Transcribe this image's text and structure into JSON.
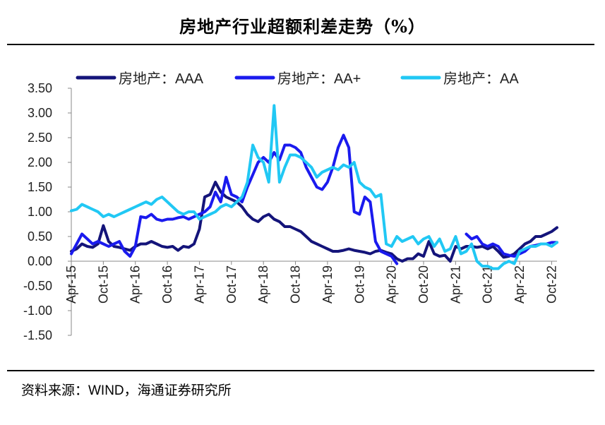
{
  "chart_data": {
    "type": "line",
    "title": "房地产行业超额利差走势（%）",
    "source": "资料来源：WIND，海通证券研究所",
    "xlabel": "",
    "ylabel": "",
    "ylim": [
      -1.5,
      3.5
    ],
    "y_ticks": [
      3.5,
      3.0,
      2.5,
      2.0,
      1.5,
      1.0,
      0.5,
      0.0,
      -0.5,
      -1.0,
      -1.5
    ],
    "y_tick_labels": [
      "3.50",
      "3.00",
      "2.50",
      "2.00",
      "1.50",
      "1.00",
      "0.50",
      "0.00",
      "-0.50",
      "-1.00",
      "-1.50"
    ],
    "x_start": "2015-04",
    "x_end": "2022-12",
    "x_ticks": [
      "Apr-15",
      "Oct-15",
      "Apr-16",
      "Oct-16",
      "Apr-17",
      "Oct-17",
      "Apr-18",
      "Oct-18",
      "Apr-19",
      "Oct-19",
      "Apr-20",
      "Oct-20",
      "Apr-21",
      "Oct-21",
      "Apr-22",
      "Oct-22"
    ],
    "legend_position": "top",
    "series": [
      {
        "name": "房地产：AAA",
        "color": "#14147a",
        "points": [
          [
            0,
            0.2
          ],
          [
            1,
            0.25
          ],
          [
            2,
            0.35
          ],
          [
            3,
            0.3
          ],
          [
            4,
            0.28
          ],
          [
            5,
            0.35
          ],
          [
            6,
            0.72
          ],
          [
            7,
            0.4
          ],
          [
            8,
            0.3
          ],
          [
            9,
            0.28
          ],
          [
            10,
            0.25
          ],
          [
            11,
            0.22
          ],
          [
            12,
            0.3
          ],
          [
            13,
            0.35
          ],
          [
            14,
            0.35
          ],
          [
            15,
            0.4
          ],
          [
            16,
            0.35
          ],
          [
            17,
            0.3
          ],
          [
            18,
            0.28
          ],
          [
            19,
            0.3
          ],
          [
            20,
            0.22
          ],
          [
            21,
            0.3
          ],
          [
            22,
            0.28
          ],
          [
            23,
            0.35
          ],
          [
            24,
            0.65
          ],
          [
            25,
            1.3
          ],
          [
            26,
            1.35
          ],
          [
            27,
            1.6
          ],
          [
            28,
            1.4
          ],
          [
            29,
            1.3
          ],
          [
            30,
            1.25
          ],
          [
            31,
            1.2
          ],
          [
            32,
            1.1
          ],
          [
            33,
            0.95
          ],
          [
            34,
            0.85
          ],
          [
            35,
            0.8
          ],
          [
            36,
            0.9
          ],
          [
            37,
            0.95
          ],
          [
            38,
            0.85
          ],
          [
            39,
            0.8
          ],
          [
            40,
            0.7
          ],
          [
            41,
            0.7
          ],
          [
            42,
            0.65
          ],
          [
            43,
            0.6
          ],
          [
            44,
            0.5
          ],
          [
            45,
            0.4
          ],
          [
            46,
            0.35
          ],
          [
            47,
            0.3
          ],
          [
            48,
            0.25
          ],
          [
            49,
            0.2
          ],
          [
            50,
            0.2
          ],
          [
            51,
            0.22
          ],
          [
            52,
            0.25
          ],
          [
            53,
            0.22
          ],
          [
            54,
            0.2
          ],
          [
            55,
            0.18
          ],
          [
            56,
            0.15
          ],
          [
            57,
            0.2
          ],
          [
            58,
            0.22
          ],
          [
            59,
            0.18
          ],
          [
            60,
            0.15
          ],
          [
            61,
            0.05
          ],
          [
            62,
            0.0
          ],
          [
            63,
            0.05
          ],
          [
            64,
            0.05
          ],
          [
            65,
            0.15
          ],
          [
            66,
            0.1
          ],
          [
            67,
            0.4
          ],
          [
            68,
            0.15
          ],
          [
            69,
            0.1
          ],
          [
            70,
            0.12
          ],
          [
            71,
            0.0
          ],
          [
            72,
            0.3
          ],
          [
            73,
            0.25
          ],
          [
            74,
            0.3
          ],
          [
            75,
            0.3
          ],
          [
            76,
            0.28
          ],
          [
            77,
            0.3
          ],
          [
            78,
            0.25
          ],
          [
            79,
            0.3
          ],
          [
            80,
            0.2
          ],
          [
            81,
            0.08
          ],
          [
            82,
            0.1
          ],
          [
            83,
            0.15
          ],
          [
            84,
            0.25
          ],
          [
            85,
            0.35
          ],
          [
            86,
            0.4
          ],
          [
            87,
            0.5
          ],
          [
            88,
            0.5
          ],
          [
            89,
            0.55
          ],
          [
            90,
            0.6
          ],
          [
            91,
            0.68
          ]
        ]
      },
      {
        "name": "房地产：AA+",
        "color": "#1a1aee",
        "points": [
          [
            0,
            0.15
          ],
          [
            1,
            0.35
          ],
          [
            2,
            0.55
          ],
          [
            3,
            0.45
          ],
          [
            4,
            0.35
          ],
          [
            5,
            0.4
          ],
          [
            6,
            0.35
          ],
          [
            7,
            0.3
          ],
          [
            8,
            0.35
          ],
          [
            9,
            0.4
          ],
          [
            10,
            0.2
          ],
          [
            11,
            0.1
          ],
          [
            12,
            0.3
          ],
          [
            13,
            0.9
          ],
          [
            14,
            0.88
          ],
          [
            15,
            0.95
          ],
          [
            16,
            0.85
          ],
          [
            17,
            0.82
          ],
          [
            18,
            0.85
          ],
          [
            19,
            0.85
          ],
          [
            20,
            0.88
          ],
          [
            21,
            0.9
          ],
          [
            22,
            0.85
          ],
          [
            23,
            0.9
          ],
          [
            24,
            0.95
          ],
          [
            25,
            1.0
          ],
          [
            26,
            1.1
          ],
          [
            27,
            1.4
          ],
          [
            28,
            1.2
          ],
          [
            29,
            1.7
          ],
          [
            30,
            1.35
          ],
          [
            31,
            1.3
          ],
          [
            32,
            1.2
          ],
          [
            33,
            1.5
          ],
          [
            34,
            1.75
          ],
          [
            35,
            2.0
          ],
          [
            36,
            2.1
          ],
          [
            37,
            2.0
          ],
          [
            38,
            2.2
          ],
          [
            39,
            2.05
          ],
          [
            40,
            2.35
          ],
          [
            41,
            2.35
          ],
          [
            42,
            2.3
          ],
          [
            43,
            2.2
          ],
          [
            44,
            1.9
          ],
          [
            45,
            1.7
          ],
          [
            46,
            1.5
          ],
          [
            47,
            1.45
          ],
          [
            48,
            1.6
          ],
          [
            49,
            1.9
          ],
          [
            50,
            2.3
          ],
          [
            51,
            2.55
          ],
          [
            52,
            2.3
          ],
          [
            53,
            1.0
          ],
          [
            54,
            0.95
          ],
          [
            55,
            1.3
          ],
          [
            56,
            1.2
          ],
          [
            57,
            0.4
          ],
          [
            58,
            0.2
          ],
          [
            59,
            0.15
          ],
          [
            60,
            0.1
          ],
          [
            61,
            -0.05
          ],
          [
            74,
            0.55
          ],
          [
            75,
            0.45
          ],
          [
            76,
            0.5
          ],
          [
            77,
            0.35
          ],
          [
            78,
            0.3
          ],
          [
            79,
            0.35
          ],
          [
            80,
            0.3
          ],
          [
            81,
            0.15
          ],
          [
            82,
            0.12
          ],
          [
            83,
            0.1
          ],
          [
            84,
            0.15
          ],
          [
            85,
            0.2
          ],
          [
            86,
            0.3
          ],
          [
            87,
            0.32
          ],
          [
            88,
            0.35
          ],
          [
            89,
            0.35
          ],
          [
            90,
            0.38
          ],
          [
            91,
            0.38
          ]
        ]
      },
      {
        "name": "房地产：AA",
        "color": "#21c8f4",
        "points": [
          [
            0,
            1.02
          ],
          [
            1,
            1.05
          ],
          [
            2,
            1.15
          ],
          [
            3,
            1.1
          ],
          [
            4,
            1.05
          ],
          [
            5,
            1.0
          ],
          [
            6,
            0.9
          ],
          [
            7,
            0.95
          ],
          [
            8,
            0.9
          ],
          [
            9,
            0.95
          ],
          [
            10,
            1.0
          ],
          [
            11,
            1.05
          ],
          [
            12,
            1.1
          ],
          [
            13,
            1.15
          ],
          [
            14,
            1.2
          ],
          [
            15,
            1.15
          ],
          [
            16,
            1.25
          ],
          [
            17,
            1.3
          ],
          [
            18,
            1.2
          ],
          [
            19,
            1.1
          ],
          [
            20,
            1.0
          ],
          [
            21,
            0.95
          ],
          [
            22,
            1.0
          ],
          [
            23,
            1.0
          ],
          [
            24,
            0.85
          ],
          [
            25,
            0.9
          ],
          [
            26,
            0.95
          ],
          [
            27,
            1.0
          ],
          [
            28,
            1.1
          ],
          [
            29,
            1.15
          ],
          [
            30,
            1.1
          ],
          [
            31,
            1.2
          ],
          [
            32,
            1.3
          ],
          [
            33,
            1.6
          ],
          [
            34,
            2.35
          ],
          [
            35,
            2.1
          ],
          [
            36,
            2.0
          ],
          [
            37,
            1.6
          ],
          [
            38,
            3.15
          ],
          [
            39,
            1.6
          ],
          [
            40,
            1.9
          ],
          [
            41,
            2.15
          ],
          [
            42,
            2.15
          ],
          [
            43,
            2.1
          ],
          [
            44,
            2.0
          ],
          [
            45,
            1.9
          ],
          [
            46,
            1.7
          ],
          [
            47,
            1.8
          ],
          [
            48,
            1.85
          ],
          [
            49,
            1.9
          ],
          [
            50,
            1.85
          ],
          [
            51,
            1.95
          ],
          [
            52,
            1.9
          ],
          [
            53,
            2.0
          ],
          [
            54,
            1.6
          ],
          [
            55,
            1.5
          ],
          [
            56,
            1.45
          ],
          [
            57,
            1.3
          ],
          [
            58,
            1.35
          ],
          [
            59,
            0.35
          ],
          [
            60,
            0.3
          ],
          [
            61,
            0.5
          ],
          [
            62,
            0.4
          ],
          [
            63,
            0.45
          ],
          [
            64,
            0.5
          ],
          [
            65,
            0.35
          ],
          [
            66,
            0.45
          ],
          [
            67,
            0.5
          ],
          [
            68,
            0.3
          ],
          [
            69,
            0.45
          ],
          [
            70,
            0.2
          ],
          [
            71,
            0.25
          ],
          [
            72,
            0.5
          ],
          [
            73,
            0.15
          ],
          [
            74,
            0.2
          ],
          [
            75,
            0.35
          ],
          [
            76,
            0.0
          ],
          [
            77,
            -0.1
          ],
          [
            78,
            -0.1
          ],
          [
            79,
            -0.15
          ],
          [
            80,
            -0.15
          ],
          [
            81,
            -0.05
          ],
          [
            82,
            0.0
          ],
          [
            83,
            -0.05
          ],
          [
            84,
            0.2
          ],
          [
            85,
            0.25
          ],
          [
            86,
            0.3
          ],
          [
            87,
            0.3
          ],
          [
            88,
            0.35
          ],
          [
            89,
            0.35
          ],
          [
            90,
            0.3
          ],
          [
            91,
            0.38
          ]
        ]
      }
    ]
  }
}
